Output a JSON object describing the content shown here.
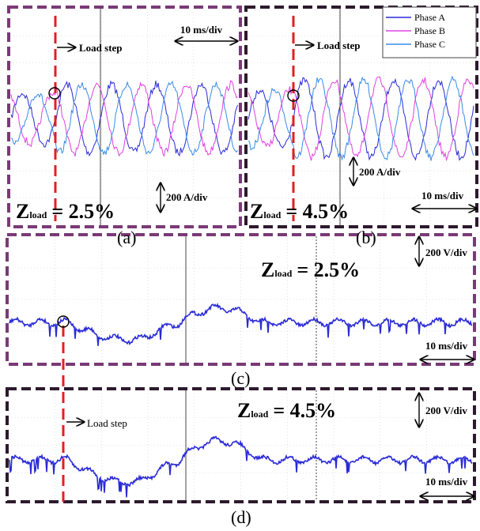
{
  "panels": [
    {
      "label": "(a)",
      "z_symbol": "Z",
      "z_subscript": "load",
      "z_value": "= 2.5%",
      "load_step": "Load step",
      "time_scale": "10 ms/div",
      "amp_scale": "200 A/div"
    },
    {
      "label": "(b)",
      "z_symbol": "Z",
      "z_subscript": "load",
      "z_value": "= 4.5%",
      "time_scale": "10 ms/div",
      "amp_scale": "200 A/div",
      "load_step": "Load step"
    },
    {
      "label": "(c)",
      "z_symbol": "Z",
      "z_subscript": "load",
      "z_value": "= 2.5%",
      "time_scale": "10 ms/div",
      "volt_scale": "200 V/div"
    },
    {
      "label": "(d)",
      "z_symbol": "Z",
      "z_subscript": "load",
      "z_value": "= 4.5%",
      "time_scale": "10 ms/div",
      "volt_scale": "200 V/div",
      "load_step": "Load step"
    }
  ],
  "legend": [
    {
      "name": "Phase A",
      "color": "#2a2ad6"
    },
    {
      "name": "Phase B",
      "color": "#e040e0"
    },
    {
      "name": "Phase C",
      "color": "#3a8ae8"
    }
  ]
}
